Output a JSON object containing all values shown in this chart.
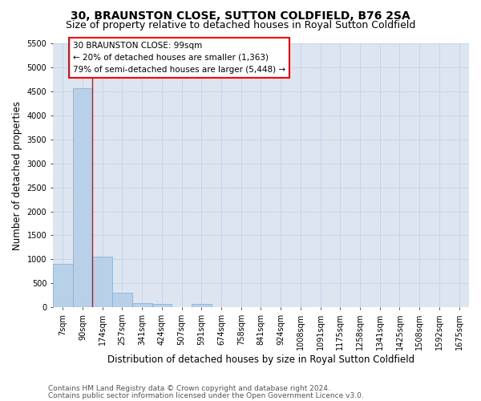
{
  "title": "30, BRAUNSTON CLOSE, SUTTON COLDFIELD, B76 2SA",
  "subtitle": "Size of property relative to detached houses in Royal Sutton Coldfield",
  "xlabel": "Distribution of detached houses by size in Royal Sutton Coldfield",
  "ylabel": "Number of detached properties",
  "footer_line1": "Contains HM Land Registry data © Crown copyright and database right 2024.",
  "footer_line2": "Contains public sector information licensed under the Open Government Licence v3.0.",
  "categories": [
    "7sqm",
    "90sqm",
    "174sqm",
    "257sqm",
    "341sqm",
    "424sqm",
    "507sqm",
    "591sqm",
    "674sqm",
    "758sqm",
    "841sqm",
    "924sqm",
    "1008sqm",
    "1091sqm",
    "1175sqm",
    "1258sqm",
    "1341sqm",
    "1425sqm",
    "1508sqm",
    "1592sqm",
    "1675sqm"
  ],
  "values": [
    900,
    4570,
    1060,
    305,
    95,
    70,
    0,
    75,
    0,
    0,
    0,
    0,
    0,
    0,
    0,
    0,
    0,
    0,
    0,
    0,
    0
  ],
  "bar_color": "#b8d0e8",
  "bar_edge_color": "#7aadd4",
  "red_line_x": 1.5,
  "annotation_text": "30 BRAUNSTON CLOSE: 99sqm\n← 20% of detached houses are smaller (1,363)\n79% of semi-detached houses are larger (5,448) →",
  "annotation_box_color": "white",
  "annotation_box_edge": "red",
  "ylim_max": 5500,
  "yticks": [
    0,
    500,
    1000,
    1500,
    2000,
    2500,
    3000,
    3500,
    4000,
    4500,
    5000,
    5500
  ],
  "grid_color": "#c8d4e8",
  "axes_bg_color": "#dde6f0",
  "fig_bg_color": "#ffffff",
  "title_fontsize": 10,
  "subtitle_fontsize": 9,
  "axis_label_fontsize": 8.5,
  "tick_fontsize": 7,
  "footer_fontsize": 6.5,
  "annot_fontsize": 7.5
}
